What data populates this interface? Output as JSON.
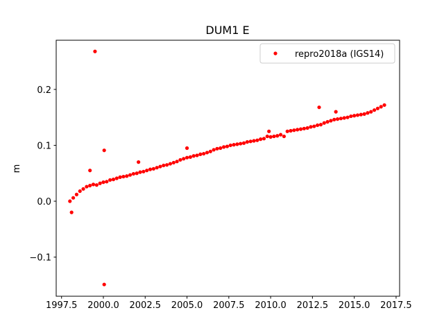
{
  "chart_data": {
    "type": "scatter",
    "title": "DUM1 E",
    "y_label": "m",
    "xlim": [
      1997.18,
      2017.71
    ],
    "ylim": [
      -0.17,
      0.288
    ],
    "xticks": [
      1997.5,
      {
        "value": 2000.0,
        "label": "2000.0"
      },
      2002.5,
      {
        "value": 2005.0,
        "label": "2005.0"
      },
      2007.5,
      {
        "value": 2010.0,
        "label": "2010.0"
      },
      2012.5,
      {
        "value": 2015.0,
        "label": "2015.0"
      },
      2017.5
    ],
    "yticks": [
      {
        "value": -0.1,
        "label": "−0.1"
      },
      {
        "value": 0,
        "label": "0.0"
      },
      0.1,
      0.2
    ],
    "legend": "upper right",
    "x": [
      1998.0,
      1998.2,
      1998.4,
      1998.6,
      1998.8,
      1999.0,
      1999.2,
      1999.4,
      1999.6,
      1999.8,
      2000.0,
      2000.2,
      2000.4,
      2000.6,
      2000.8,
      2001.0,
      2001.2,
      2001.4,
      2001.6,
      2001.8,
      2002.0,
      2002.2,
      2002.4,
      2002.6,
      2002.8,
      2003.0,
      2003.2,
      2003.4,
      2003.6,
      2003.8,
      2004.0,
      2004.2,
      2004.4,
      2004.6,
      2004.8,
      2005.0,
      2005.2,
      2005.4,
      2005.6,
      2005.8,
      2006.0,
      2006.2,
      2006.4,
      2006.6,
      2006.8,
      2007.0,
      2007.2,
      2007.4,
      2007.6,
      2007.8,
      2008.0,
      2008.2,
      2008.4,
      2008.6,
      2008.8,
      2009.0,
      2009.2,
      2009.4,
      2009.6,
      2009.8,
      2010.0,
      2010.2,
      2010.4,
      2010.6,
      2010.8,
      2011.0,
      2011.2,
      2011.4,
      2011.6,
      2011.8,
      2012.0,
      2012.2,
      2012.4,
      2012.6,
      2012.8,
      2013.0,
      2013.2,
      2013.4,
      2013.6,
      2013.8,
      2014.0,
      2014.2,
      2014.4,
      2014.6,
      2014.8,
      2015.0,
      2015.2,
      2015.4,
      2015.6,
      2015.8,
      2016.0,
      2016.2,
      2016.4,
      2016.6,
      2016.8,
      1998.1,
      1999.2,
      1999.5,
      2000.05,
      2000.05,
      2002.1,
      2012.9,
      2013.9,
      2005.0,
      2009.9
    ],
    "series": [
      {
        "name": "repro2018a (IGS14)",
        "color": "#ff0000",
        "values": [
          0.0,
          0.006,
          0.012,
          0.018,
          0.022,
          0.026,
          0.028,
          0.03,
          0.029,
          0.032,
          0.034,
          0.035,
          0.038,
          0.039,
          0.041,
          0.043,
          0.044,
          0.045,
          0.047,
          0.049,
          0.05,
          0.052,
          0.053,
          0.055,
          0.057,
          0.058,
          0.06,
          0.062,
          0.064,
          0.065,
          0.067,
          0.069,
          0.071,
          0.074,
          0.076,
          0.078,
          0.079,
          0.081,
          0.082,
          0.084,
          0.085,
          0.087,
          0.089,
          0.092,
          0.094,
          0.095,
          0.097,
          0.098,
          0.1,
          0.101,
          0.102,
          0.103,
          0.104,
          0.106,
          0.107,
          0.108,
          0.109,
          0.111,
          0.112,
          0.116,
          0.115,
          0.116,
          0.117,
          0.119,
          0.116,
          0.125,
          0.126,
          0.127,
          0.128,
          0.129,
          0.13,
          0.131,
          0.133,
          0.134,
          0.136,
          0.137,
          0.14,
          0.142,
          0.144,
          0.146,
          0.147,
          0.148,
          0.149,
          0.15,
          0.152,
          0.153,
          0.154,
          0.155,
          0.156,
          0.158,
          0.16,
          0.163,
          0.166,
          0.169,
          0.172,
          -0.02,
          0.055,
          0.268,
          0.091,
          -0.149,
          0.07,
          0.168,
          0.16,
          0.095,
          0.125
        ]
      }
    ]
  }
}
